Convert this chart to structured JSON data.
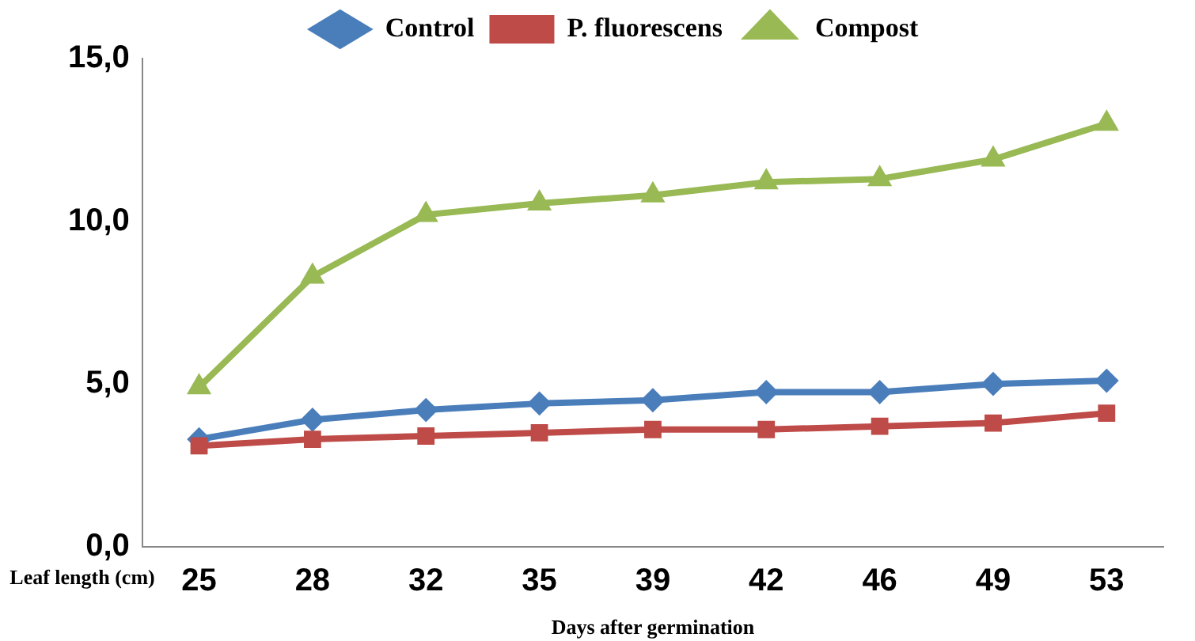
{
  "chart_data": {
    "type": "line",
    "xlabel": "Days after germination",
    "ylabel": "Leaf length (cm)",
    "categories": [
      "25",
      "28",
      "32",
      "35",
      "39",
      "42",
      "46",
      "49",
      "53"
    ],
    "series": [
      {
        "name": "Control",
        "color": "#4a7ebb",
        "marker": "diamond",
        "values": [
          3.3,
          3.9,
          4.2,
          4.4,
          4.5,
          4.75,
          4.75,
          5.0,
          5.1
        ]
      },
      {
        "name": "P. fluorescens",
        "color": "#be4b48",
        "marker": "square",
        "values": [
          3.1,
          3.3,
          3.4,
          3.5,
          3.6,
          3.6,
          3.7,
          3.8,
          4.1
        ]
      },
      {
        "name": "Compost",
        "color": "#98b954",
        "marker": "triangle",
        "values": [
          4.9,
          8.3,
          10.2,
          10.55,
          10.8,
          11.2,
          11.3,
          11.9,
          13.0
        ]
      }
    ],
    "ylim": [
      0,
      15
    ],
    "yticks": [
      {
        "value": 0,
        "label": "0,0"
      },
      {
        "value": 5,
        "label": "5,0"
      },
      {
        "value": 10,
        "label": "10,0"
      },
      {
        "value": 15,
        "label": "15,0"
      }
    ],
    "grid": false,
    "legend": "top",
    "line_style": "solid"
  }
}
